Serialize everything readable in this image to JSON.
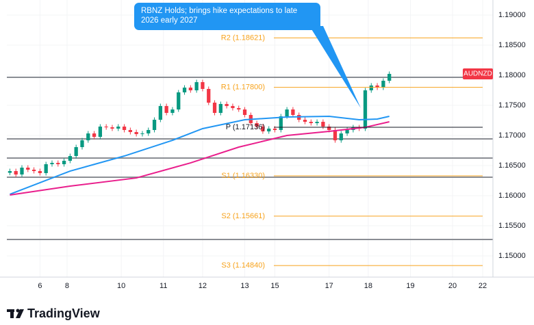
{
  "chart_data": {
    "type": "candlestick",
    "symbol": "AUDNZD",
    "annotation": "RBNZ Holds; brings hike expectations to late 2026 early 2027",
    "brand": "TradingView",
    "colors": {
      "up": "#089981",
      "down": "#f23645"
    },
    "x": [
      0,
      1,
      2,
      3,
      4,
      5,
      6,
      7,
      8,
      9,
      10,
      11,
      12,
      13,
      14,
      15,
      16,
      17,
      18,
      19,
      20,
      21,
      22,
      23,
      24,
      25,
      26,
      27,
      28,
      29,
      30,
      31,
      32,
      33,
      34,
      35,
      36,
      37,
      38,
      39,
      40,
      41,
      42,
      43,
      44,
      45,
      46,
      47,
      48,
      49,
      50,
      51,
      52,
      53,
      54,
      55,
      56,
      57,
      58,
      59,
      60,
      61,
      62,
      63
    ],
    "open": [
      1.1638,
      1.16409,
      1.16352,
      1.16466,
      1.16432,
      1.16409,
      1.16375,
      1.16523,
      1.16545,
      1.16523,
      1.1658,
      1.16659,
      1.16807,
      1.1692,
      1.17034,
      1.16977,
      1.17148,
      1.17136,
      1.17114,
      1.17148,
      1.17091,
      1.17057,
      1.17023,
      1.17034,
      1.17091,
      1.17261,
      1.17489,
      1.17375,
      1.17432,
      1.17716,
      1.17795,
      1.1775,
      1.17886,
      1.17773,
      1.17545,
      1.17375,
      1.17523,
      1.17489,
      1.17455,
      1.17432,
      1.17341,
      1.17205,
      1.17148,
      1.17068,
      1.17114,
      1.17091,
      1.17318,
      1.17432,
      1.17341,
      1.17261,
      1.17227,
      1.17205,
      1.17227,
      1.17148,
      1.17091,
      1.1692,
      1.17034,
      1.17091,
      1.17136,
      1.17114,
      1.1775,
      1.1783,
      1.17795,
      1.17909
    ],
    "high": [
      1.16449,
      1.16449,
      1.16506,
      1.16506,
      1.16472,
      1.16449,
      1.16563,
      1.16585,
      1.16585,
      1.1662,
      1.16699,
      1.16847,
      1.1696,
      1.17074,
      1.17074,
      1.17188,
      1.17188,
      1.17176,
      1.17188,
      1.17188,
      1.17131,
      1.17097,
      1.17074,
      1.17131,
      1.17301,
      1.17529,
      1.17529,
      1.17472,
      1.17756,
      1.17835,
      1.17835,
      1.17926,
      1.17926,
      1.17813,
      1.17585,
      1.17563,
      1.17563,
      1.17529,
      1.17495,
      1.17472,
      1.17381,
      1.17245,
      1.17188,
      1.17154,
      1.17154,
      1.17358,
      1.17472,
      1.17472,
      1.17381,
      1.17301,
      1.17267,
      1.17267,
      1.17267,
      1.17188,
      1.17131,
      1.17074,
      1.17131,
      1.17176,
      1.17176,
      1.1779,
      1.1787,
      1.1787,
      1.17949,
      1.18063
    ],
    "low": [
      1.1634,
      1.16312,
      1.16312,
      1.16392,
      1.16369,
      1.16335,
      1.16335,
      1.16483,
      1.16483,
      1.16483,
      1.1654,
      1.16619,
      1.16767,
      1.1688,
      1.16937,
      1.16937,
      1.17096,
      1.17074,
      1.17074,
      1.17051,
      1.17017,
      1.16983,
      1.16983,
      1.16994,
      1.17051,
      1.17221,
      1.17335,
      1.17335,
      1.17392,
      1.17676,
      1.1771,
      1.1771,
      1.17733,
      1.17505,
      1.17335,
      1.17335,
      1.17449,
      1.17415,
      1.17392,
      1.17301,
      1.17165,
      1.17108,
      1.17028,
      1.17028,
      1.17051,
      1.17051,
      1.17278,
      1.17301,
      1.17221,
      1.17187,
      1.17165,
      1.17165,
      1.17108,
      1.17051,
      1.1688,
      1.1688,
      1.16994,
      1.17051,
      1.17074,
      1.17074,
      1.1771,
      1.17755,
      1.17755,
      1.17869
    ],
    "close": [
      1.16409,
      1.16352,
      1.16466,
      1.16432,
      1.16409,
      1.16375,
      1.16523,
      1.16545,
      1.16523,
      1.1658,
      1.16659,
      1.16807,
      1.1692,
      1.17034,
      1.16977,
      1.17148,
      1.17136,
      1.17114,
      1.17148,
      1.17091,
      1.17057,
      1.17023,
      1.17034,
      1.17091,
      1.17261,
      1.17489,
      1.17375,
      1.17432,
      1.17716,
      1.17795,
      1.1775,
      1.17886,
      1.17773,
      1.17545,
      1.17375,
      1.17523,
      1.17489,
      1.17455,
      1.17432,
      1.17341,
      1.17205,
      1.17148,
      1.17068,
      1.17114,
      1.17091,
      1.17318,
      1.17432,
      1.17341,
      1.17261,
      1.17227,
      1.17205,
      1.17227,
      1.17148,
      1.17091,
      1.1692,
      1.17034,
      1.17091,
      1.17136,
      1.17114,
      1.1775,
      1.1783,
      1.17795,
      1.17909,
      1.18023
    ],
    "moving_averages": [
      {
        "color": "#2196f3",
        "x": [
          0,
          10,
          19,
          27,
          32,
          39,
          46,
          53,
          58,
          61,
          63
        ],
        "values": [
          1.16023,
          1.16409,
          1.16659,
          1.1692,
          1.17114,
          1.17261,
          1.17307,
          1.17318,
          1.17261,
          1.17273,
          1.17318
        ]
      },
      {
        "color": "#e91e8c",
        "x": [
          0,
          10,
          21,
          30,
          38,
          46,
          53,
          59,
          63
        ],
        "values": [
          1.16011,
          1.16159,
          1.16295,
          1.16545,
          1.16807,
          1.17,
          1.17068,
          1.17136,
          1.17227
        ]
      }
    ],
    "pivots": [
      {
        "label": "R2 (1.18621)",
        "value": 1.18621,
        "color": "#f7a21b"
      },
      {
        "label": "R1 (1.17800)",
        "value": 1.178,
        "color": "#f7a21b"
      },
      {
        "label": "P (1.17136)",
        "value": 1.17136,
        "color": "#131722"
      },
      {
        "label": "S1 (1.16330)",
        "value": 1.1633,
        "color": "#f7a21b"
      },
      {
        "label": "S2 (1.15661)",
        "value": 1.15661,
        "color": "#f7a21b"
      },
      {
        "label": "S3 (1.14840)",
        "value": 1.1484,
        "color": "#f7a21b"
      }
    ],
    "levels": [
      1.17966,
      1.16943,
      1.16625,
      1.16307,
      1.15273
    ],
    "xlim": [
      -0.5,
      80.2
    ],
    "xticks": [
      {
        "value": 5,
        "label": "6"
      },
      {
        "value": 9.5,
        "label": "8"
      },
      {
        "value": 18.5,
        "label": "10"
      },
      {
        "value": 25.5,
        "label": "11"
      },
      {
        "value": 32,
        "label": "12"
      },
      {
        "value": 39,
        "label": "13"
      },
      {
        "value": 44,
        "label": "15"
      },
      {
        "value": 53,
        "label": "17"
      },
      {
        "value": 59.5,
        "label": "18"
      },
      {
        "value": 66.5,
        "label": "19"
      },
      {
        "value": 73.5,
        "label": "20"
      },
      {
        "value": 78.5,
        "label": "22"
      }
    ],
    "ylim": [
      1.14648,
      1.1925
    ],
    "yticks": [
      {
        "value": 1.19,
        "label": "1.19000"
      },
      {
        "value": 1.185,
        "label": "1.18500"
      },
      {
        "value": 1.18,
        "label": "1.18000"
      },
      {
        "value": 1.175,
        "label": "1.17500"
      },
      {
        "value": 1.17,
        "label": "1.17000"
      },
      {
        "value": 1.165,
        "label": "1.16500"
      },
      {
        "value": 1.16,
        "label": "1.16000"
      },
      {
        "value": 1.155,
        "label": "1.15500"
      },
      {
        "value": 1.15,
        "label": "1.15000"
      }
    ],
    "grid": true
  }
}
